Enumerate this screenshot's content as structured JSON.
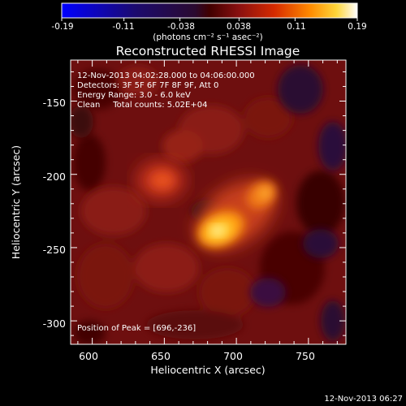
{
  "colorbar": {
    "tick_labels": [
      "-0.19",
      "-0.11",
      "-0.038",
      "0.038",
      "0.11",
      "0.19"
    ],
    "tick_values": [
      -0.19,
      -0.11,
      -0.038,
      0.038,
      0.11,
      0.19
    ],
    "range": [
      -0.19,
      0.19
    ],
    "unit_label": "(photons cm⁻² s⁻¹ asec⁻²)"
  },
  "image": {
    "title": "Reconstructed RHESSI Image",
    "info_lines": [
      "12-Nov-2013 04:02:28.000 to 04:06:00.000",
      "Detectors: 3F 5F 6F 7F 8F 9F, Att 0",
      "Energy Range: 3.0 - 6.0 keV",
      "Clean     Total counts: 5.02E+04"
    ],
    "peak_label": "Position of Peak = [696,-236]",
    "peak": [
      696,
      -236
    ],
    "xlabel": "Heliocentric X (arcsec)",
    "ylabel": "Heliocentric Y (arcsec)",
    "x_ticks": [
      600,
      650,
      700,
      750
    ],
    "y_ticks": [
      -150,
      -200,
      -250,
      -300
    ],
    "xlim": [
      585,
      776
    ],
    "ylim": [
      -316,
      -122
    ],
    "colormap": "hot-with-blue-negative"
  },
  "footer": {
    "timestamp": "12-Nov-2013 06:27"
  }
}
